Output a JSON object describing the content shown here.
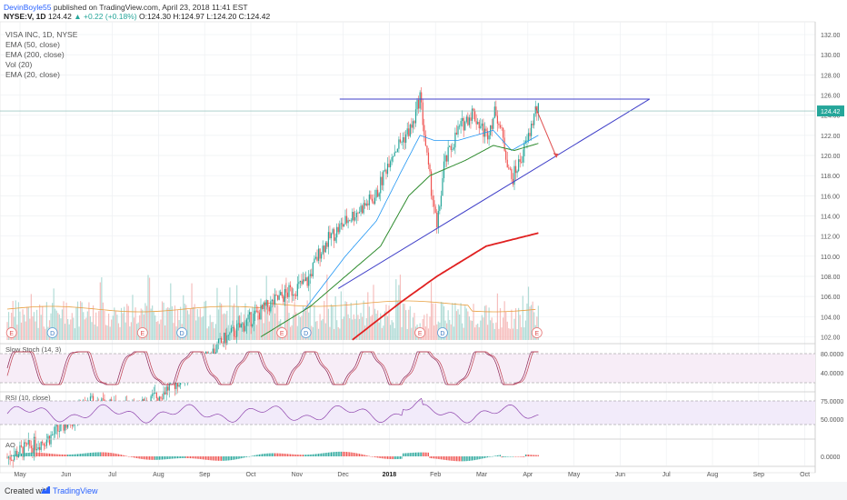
{
  "header": {
    "author": "DevinBoyle55",
    "published": " published on TradingView.com, April 23, 2018 11:41 EST"
  },
  "quote": {
    "symbol": "NYSE:V, 1D",
    "last": "124.42",
    "change": "▲ +0.22 (+0.18%)",
    "open": "O:124.30",
    "high": "H:124.97",
    "low": "L:124.20",
    "close": "C:124.42"
  },
  "legend": [
    "VISA INC, 1D, NYSE",
    "EMA (50, close)",
    "EMA (200, close)",
    "Vol (20)",
    "EMA (20, close)"
  ],
  "footer": {
    "created_with": "Created with",
    "brand": "TradingView"
  },
  "colors": {
    "up": "#26a69a",
    "down": "#ef5350",
    "ema20": "#2196f3",
    "ema50": "#2e8b2e",
    "ema200": "#e02020",
    "trend": "#3f3fc8",
    "stoch_k": "#8b2252",
    "stoch_d": "#c04050",
    "rsi": "#8e44ad",
    "price_label_bg": "#26a69a"
  },
  "chart_data": {
    "type": "candlestick",
    "price_axis_ticks": [
      102,
      104,
      106,
      108,
      110,
      112,
      114,
      116,
      118,
      120,
      122,
      124,
      126,
      128,
      130,
      132
    ],
    "price_range": [
      101.5,
      133
    ],
    "last_price": "124.42",
    "months": [
      "May",
      "Jun",
      "Jul",
      "Aug",
      "Sep",
      "Oct",
      "Nov",
      "Dec",
      "2018",
      "Feb",
      "Mar",
      "Apr",
      "May",
      "Jun",
      "Jul",
      "Aug",
      "Sep",
      "Oct"
    ],
    "price_anchors": [
      [
        0,
        90.0
      ],
      [
        30,
        92.0
      ],
      [
        60,
        95.5
      ],
      [
        90,
        94.5
      ],
      [
        115,
        97.0
      ],
      [
        135,
        99.0
      ],
      [
        155,
        101.8
      ],
      [
        175,
        104.0
      ],
      [
        195,
        106.0
      ],
      [
        213,
        107.5
      ],
      [
        222,
        110.5
      ],
      [
        230,
        112.0
      ],
      [
        242,
        113.7
      ],
      [
        262,
        116.0
      ],
      [
        272,
        120.0
      ],
      [
        288,
        123.0
      ],
      [
        293,
        126.0
      ],
      [
        299,
        118.5
      ],
      [
        303,
        115.0
      ],
      [
        305,
        112.5
      ],
      [
        310,
        119.0
      ],
      [
        320,
        122.5
      ],
      [
        330,
        124.3
      ],
      [
        340,
        122.0
      ],
      [
        347,
        124.5
      ],
      [
        352,
        121.5
      ],
      [
        358,
        117.5
      ],
      [
        364,
        119.5
      ],
      [
        370,
        121.8
      ],
      [
        375,
        124.5
      ],
      [
        377,
        124.42
      ]
    ],
    "ema_anchors": {
      "ema20": [
        [
          210,
          104.5
        ],
        [
          240,
          110.0
        ],
        [
          262,
          113.5
        ],
        [
          280,
          118.5
        ],
        [
          293,
          122.0
        ],
        [
          303,
          121.5
        ],
        [
          320,
          121.5
        ],
        [
          345,
          122.5
        ],
        [
          358,
          120.5
        ],
        [
          377,
          122.0
        ]
      ],
      "ema50": [
        [
          180,
          102.0
        ],
        [
          215,
          105.0
        ],
        [
          240,
          108.0
        ],
        [
          265,
          111.0
        ],
        [
          285,
          116.0
        ],
        [
          300,
          118.0
        ],
        [
          325,
          119.5
        ],
        [
          345,
          121.0
        ],
        [
          360,
          120.5
        ],
        [
          377,
          121.2
        ]
      ],
      "ema200": [
        [
          245,
          101.7
        ],
        [
          280,
          105.5
        ],
        [
          305,
          108.0
        ],
        [
          340,
          111.0
        ],
        [
          377,
          112.3
        ]
      ]
    },
    "trendlines": {
      "resistance": [
        [
          236,
          125.6
        ],
        [
          456,
          125.6
        ]
      ],
      "support": [
        [
          235,
          106.8
        ],
        [
          456,
          125.6
        ]
      ]
    },
    "forecast_arrow": [
      [
        375,
        124.8
      ],
      [
        390,
        119.8
      ]
    ],
    "events": [
      {
        "bar": 3,
        "label": "E"
      },
      {
        "bar": 32,
        "label": "D"
      },
      {
        "bar": 96,
        "label": "E"
      },
      {
        "bar": 124,
        "label": "D"
      },
      {
        "bar": 195,
        "label": "E"
      },
      {
        "bar": 212,
        "label": "D"
      },
      {
        "bar": 293,
        "label": "E"
      },
      {
        "bar": 309,
        "label": "D"
      },
      {
        "bar": 376,
        "label": "E"
      }
    ],
    "indicators": {
      "stoch": {
        "label": "Slow Stoch (14, 3)",
        "ticks": [
          "80.0000",
          "40.0000"
        ]
      },
      "rsi": {
        "label": "RSI (10, close)",
        "ticks": [
          "75.0000",
          "50.0000"
        ]
      },
      "ao": {
        "label": "AO",
        "ticks": [
          "0.0000"
        ]
      }
    }
  }
}
